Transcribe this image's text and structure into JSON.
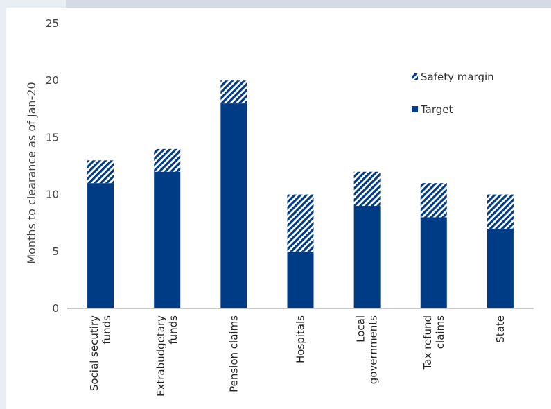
{
  "chart_data": {
    "type": "bar",
    "stacked": true,
    "ylabel": "Months to clearance as of Jan-20",
    "ylim": [
      0,
      25
    ],
    "yticks": [
      0,
      5,
      10,
      15,
      20,
      25
    ],
    "categories": [
      [
        "Social secutiry",
        "funds"
      ],
      [
        "Extrabudgetary",
        "funds"
      ],
      [
        "Pension claims"
      ],
      [
        "Hospitals"
      ],
      [
        "Local",
        "governments"
      ],
      [
        "Tax refund",
        "claims"
      ],
      [
        "State"
      ]
    ],
    "series": [
      {
        "name": "Target",
        "values": [
          11,
          12,
          18,
          5,
          9,
          8,
          7
        ],
        "color": "#003b85",
        "pattern": "solid"
      },
      {
        "name": "Safety margin",
        "values": [
          2,
          2,
          2,
          5,
          3,
          3,
          3
        ],
        "color": "#003b85",
        "pattern": "diagonal-hatch"
      }
    ],
    "legend": {
      "position": "top-right",
      "order": [
        "Safety margin",
        "Target"
      ]
    },
    "grid": false
  }
}
